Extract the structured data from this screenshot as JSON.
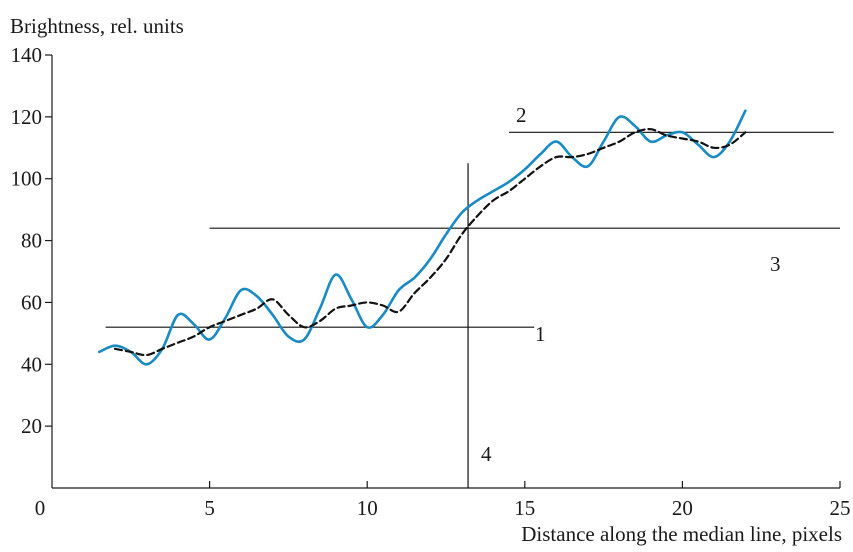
{
  "chart_data": {
    "type": "line",
    "title": "",
    "xlabel": "Distance along the median line, pixels",
    "ylabel": "Brightness, rel. units",
    "xlim": [
      0,
      25
    ],
    "ylim": [
      0,
      140
    ],
    "xticks": [
      0,
      5,
      10,
      15,
      20,
      25
    ],
    "yticks": [
      20,
      40,
      60,
      80,
      100,
      120,
      140
    ],
    "grid": false,
    "colors": {
      "measured": "#1a8ac4",
      "smoothed": "#111111",
      "reference": "#111111"
    },
    "series": [
      {
        "style": "solid",
        "x": [
          1.5,
          2.0,
          2.5,
          3.0,
          3.5,
          4.0,
          4.5,
          5.0,
          5.5,
          6.0,
          6.5,
          7.0,
          7.5,
          8.0,
          8.5,
          9.0,
          9.5,
          10.0,
          10.5,
          11.0,
          11.5,
          12.0,
          12.5,
          13.0,
          13.5,
          14.0,
          14.5,
          15.0,
          15.5,
          16.0,
          16.5,
          17.0,
          17.5,
          18.0,
          18.5,
          19.0,
          19.5,
          20.0,
          20.5,
          21.0,
          21.5,
          22.0
        ],
        "values": [
          44,
          46,
          44,
          40,
          45,
          56,
          53,
          48,
          55,
          64,
          62,
          56,
          49,
          48,
          58,
          69,
          61,
          52,
          56,
          64,
          68,
          74,
          82,
          89,
          93,
          96,
          99,
          103,
          108,
          112,
          107,
          104,
          112,
          120,
          117,
          112,
          114,
          115,
          111,
          107,
          112,
          122
        ]
      },
      {
        "style": "dashed",
        "x": [
          2.0,
          2.5,
          3.0,
          3.5,
          4.0,
          4.5,
          5.0,
          5.5,
          6.0,
          6.5,
          7.0,
          7.5,
          8.0,
          8.5,
          9.0,
          9.5,
          10.0,
          10.5,
          11.0,
          11.5,
          12.0,
          12.5,
          13.0,
          13.5,
          14.0,
          14.5,
          15.0,
          15.5,
          16.0,
          16.5,
          17.0,
          17.5,
          18.0,
          18.5,
          19.0,
          19.5,
          20.0,
          20.5,
          21.0,
          21.5,
          22.0
        ],
        "values": [
          45,
          44,
          43,
          45,
          47,
          49,
          52,
          54,
          56,
          58,
          61,
          56,
          52,
          54,
          58,
          59,
          60,
          59,
          57,
          63,
          68,
          74,
          82,
          88,
          93,
          96,
          100,
          104,
          107,
          107,
          108,
          110,
          112,
          115,
          116,
          114,
          113,
          112,
          110,
          111,
          115
        ]
      }
    ],
    "reference_lines": [
      {
        "label": "1",
        "orientation": "horizontal",
        "y": 52,
        "x_from": 1.7,
        "x_to": 15.3
      },
      {
        "label": "2",
        "orientation": "horizontal",
        "y": 115,
        "x_from": 14.5,
        "x_to": 24.8
      },
      {
        "label": "3",
        "orientation": "horizontal",
        "y": 84,
        "x_from": 5.0,
        "x_to": 25.0
      },
      {
        "label": "4",
        "orientation": "vertical",
        "x": 13.2,
        "y_from": 0,
        "y_to": 105
      }
    ]
  }
}
